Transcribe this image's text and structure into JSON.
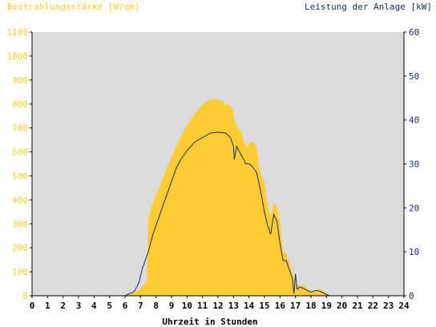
{
  "chart_data": {
    "type": "area",
    "left_axis_label": "Bestrahlungsstärke [W/qm]",
    "right_axis_label": "Leistung der Anlage [kW]",
    "xlabel": "Uhrzeit in Stunden",
    "xlim": [
      0,
      24
    ],
    "ylim_left": [
      0,
      1100
    ],
    "ylim_right": [
      0,
      60
    ],
    "x_ticks": [
      "0",
      "1",
      "2",
      "3",
      "4",
      "5",
      "6",
      "7",
      "8",
      "9",
      "10",
      "11",
      "12",
      "13",
      "14",
      "15",
      "16",
      "17",
      "18",
      "19",
      "20",
      "21",
      "22",
      "23",
      "24"
    ],
    "y_ticks_left": [
      "0",
      "100",
      "200",
      "300",
      "400",
      "500",
      "600",
      "700",
      "800",
      "900",
      "1000",
      "1100"
    ],
    "y_ticks_right": [
      "0",
      "10",
      "20",
      "30",
      "40",
      "50",
      "60"
    ],
    "colors": {
      "irradiance": "#ffcc33",
      "power": "#1a2e6e",
      "left_axis_text": "#ffcc33",
      "right_axis_text": "#1a2e6e",
      "plot_background": "#dcdcdc"
    },
    "series": [
      {
        "name": "Bestrahlungsstärke [W/qm]",
        "axis": "left",
        "style": "area",
        "points": [
          [
            0,
            0
          ],
          [
            6.0,
            0
          ],
          [
            6.2,
            5
          ],
          [
            6.5,
            10
          ],
          [
            6.8,
            20
          ],
          [
            7.0,
            30
          ],
          [
            7.2,
            45
          ],
          [
            7.4,
            60
          ],
          [
            7.5,
            320
          ],
          [
            7.7,
            370
          ],
          [
            8.0,
            420
          ],
          [
            8.5,
            500
          ],
          [
            9.0,
            580
          ],
          [
            9.5,
            650
          ],
          [
            10.0,
            710
          ],
          [
            10.5,
            760
          ],
          [
            11.0,
            800
          ],
          [
            11.5,
            818
          ],
          [
            12.0,
            820
          ],
          [
            12.3,
            812
          ],
          [
            12.5,
            795
          ],
          [
            12.7,
            800
          ],
          [
            13.0,
            770
          ],
          [
            13.1,
            720
          ],
          [
            13.3,
            700
          ],
          [
            13.5,
            680
          ],
          [
            13.7,
            640
          ],
          [
            13.9,
            620
          ],
          [
            14.0,
            640
          ],
          [
            14.3,
            640
          ],
          [
            14.5,
            620
          ],
          [
            14.7,
            520
          ],
          [
            15.0,
            470
          ],
          [
            15.2,
            380
          ],
          [
            15.4,
            330
          ],
          [
            15.6,
            390
          ],
          [
            15.8,
            370
          ],
          [
            16.0,
            310
          ],
          [
            16.2,
            180
          ],
          [
            16.4,
            180
          ],
          [
            16.6,
            140
          ],
          [
            16.8,
            90
          ],
          [
            17.0,
            50
          ],
          [
            17.2,
            40
          ],
          [
            17.5,
            45
          ],
          [
            17.8,
            25
          ],
          [
            18.0,
            20
          ],
          [
            18.3,
            15
          ],
          [
            18.5,
            30
          ],
          [
            18.8,
            20
          ],
          [
            19.0,
            10
          ],
          [
            19.2,
            0
          ],
          [
            24,
            0
          ]
        ]
      },
      {
        "name": "Leistung der Anlage [kW]",
        "axis": "right",
        "style": "line",
        "points": [
          [
            0,
            0
          ],
          [
            6.0,
            0
          ],
          [
            6.3,
            0.5
          ],
          [
            6.6,
            1
          ],
          [
            6.9,
            3
          ],
          [
            7.1,
            6
          ],
          [
            7.3,
            8
          ],
          [
            7.5,
            10
          ],
          [
            7.8,
            14
          ],
          [
            8.0,
            16
          ],
          [
            8.3,
            19
          ],
          [
            8.7,
            23
          ],
          [
            9.0,
            26
          ],
          [
            9.3,
            29
          ],
          [
            9.6,
            31
          ],
          [
            10.0,
            33
          ],
          [
            10.5,
            35
          ],
          [
            11.0,
            36
          ],
          [
            11.5,
            37
          ],
          [
            12.0,
            37.2
          ],
          [
            12.5,
            37
          ],
          [
            12.8,
            36
          ],
          [
            13.0,
            34
          ],
          [
            13.05,
            31
          ],
          [
            13.2,
            34
          ],
          [
            13.5,
            32
          ],
          [
            13.8,
            30
          ],
          [
            14.0,
            30
          ],
          [
            14.2,
            29.5
          ],
          [
            14.5,
            28
          ],
          [
            14.8,
            23
          ],
          [
            15.0,
            19
          ],
          [
            15.2,
            16
          ],
          [
            15.4,
            14
          ],
          [
            15.6,
            18.5
          ],
          [
            15.8,
            17
          ],
          [
            16.0,
            12
          ],
          [
            16.2,
            8
          ],
          [
            16.4,
            8
          ],
          [
            16.6,
            6
          ],
          [
            16.8,
            4
          ],
          [
            16.9,
            0.5
          ],
          [
            17.0,
            5
          ],
          [
            17.1,
            1.5
          ],
          [
            17.3,
            2
          ],
          [
            17.6,
            1.5
          ],
          [
            18.0,
            0.8
          ],
          [
            18.3,
            1.2
          ],
          [
            18.6,
            1
          ],
          [
            19.0,
            0.3
          ],
          [
            19.2,
            0
          ],
          [
            24,
            0
          ]
        ]
      }
    ]
  }
}
